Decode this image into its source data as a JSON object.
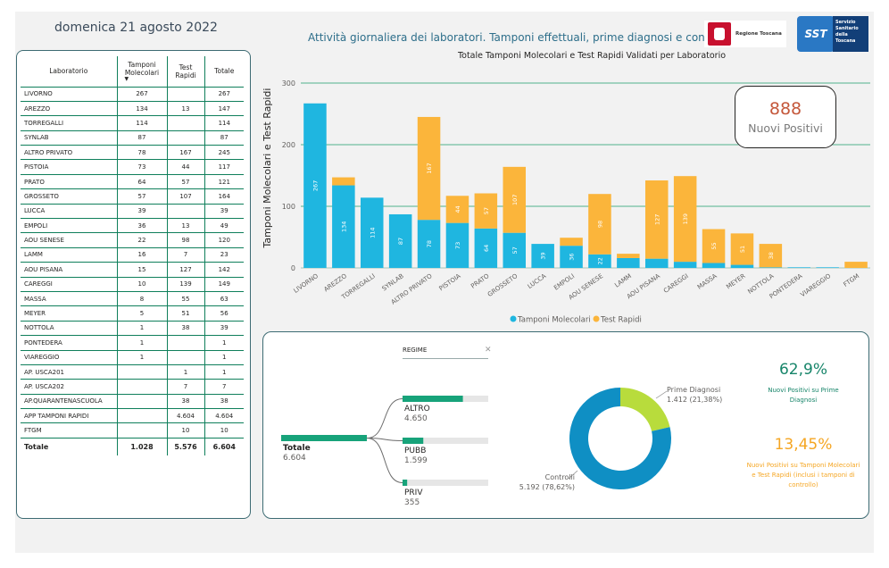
{
  "header": {
    "date": "domenica 21 agosto 2022",
    "subtitle": "Attività giornaliera dei laboratori. Tamponi effettuali, prime diagnosi e controlli",
    "logo_regione": "Regione Toscana",
    "logo_sst": "SST",
    "logo_sst_text": "Servizio Sanitario della Toscana"
  },
  "table": {
    "columns": [
      "Laboratorio",
      "Tamponi Molecolari",
      "Test Rapidi",
      "Totale"
    ],
    "rows": [
      [
        "LIVORNO",
        "267",
        "",
        "267"
      ],
      [
        "AREZZO",
        "134",
        "13",
        "147"
      ],
      [
        "TORREGALLI",
        "114",
        "",
        "114"
      ],
      [
        "SYNLAB",
        "87",
        "",
        "87"
      ],
      [
        "ALTRO PRIVATO",
        "78",
        "167",
        "245"
      ],
      [
        "PISTOIA",
        "73",
        "44",
        "117"
      ],
      [
        "PRATO",
        "64",
        "57",
        "121"
      ],
      [
        "GROSSETO",
        "57",
        "107",
        "164"
      ],
      [
        "LUCCA",
        "39",
        "",
        "39"
      ],
      [
        "EMPOLI",
        "36",
        "13",
        "49"
      ],
      [
        "AOU SENESE",
        "22",
        "98",
        "120"
      ],
      [
        "LAMM",
        "16",
        "7",
        "23"
      ],
      [
        "AOU PISANA",
        "15",
        "127",
        "142"
      ],
      [
        "CAREGGI",
        "10",
        "139",
        "149"
      ],
      [
        "MASSA",
        "8",
        "55",
        "63"
      ],
      [
        "MEYER",
        "5",
        "51",
        "56"
      ],
      [
        "NOTTOLA",
        "1",
        "38",
        "39"
      ],
      [
        "PONTEDERA",
        "1",
        "",
        "1"
      ],
      [
        "VIAREGGIO",
        "1",
        "",
        "1"
      ],
      [
        "AP. USCA201",
        "",
        "1",
        "1"
      ],
      [
        "AP. USCA202",
        "",
        "7",
        "7"
      ],
      [
        "AP.QUARANTENASCUOLA",
        "",
        "38",
        "38"
      ],
      [
        "APP TAMPONI RAPIDI",
        "",
        "4.604",
        "4.604"
      ],
      [
        "FTGM",
        "",
        "10",
        "10"
      ]
    ],
    "total": [
      "Totale",
      "1.028",
      "5.576",
      "6.604"
    ]
  },
  "chart_data": {
    "type": "bar",
    "stacked": true,
    "title": "Totale Tamponi Molecolari e Test Rapidi Validati per Laboratorio",
    "ylabel": "Tamponi Molecolari e Test Rapidi",
    "xlabel": "",
    "ylim": [
      0,
      300
    ],
    "yticks": [
      0,
      100,
      200,
      300
    ],
    "grid": true,
    "legend": "bottom",
    "categories": [
      "LIVORNO",
      "AREZZO",
      "TORREGALLI",
      "SYNLAB",
      "ALTRO PRIVATO",
      "PISTOIA",
      "PRATO",
      "GROSSETO",
      "LUCCA",
      "EMPOLI",
      "AOU SENESE",
      "LAMM",
      "AOU PISANA",
      "CAREGGI",
      "MASSA",
      "MEYER",
      "NOTTOLA",
      "PONTEDERA",
      "VIAREGGIO",
      "FTGM"
    ],
    "series": [
      {
        "name": "Tamponi Molecolari",
        "color": "#1fb6e0",
        "values": [
          267,
          134,
          114,
          87,
          78,
          73,
          64,
          57,
          39,
          36,
          22,
          16,
          15,
          10,
          8,
          5,
          1,
          1,
          1,
          0
        ]
      },
      {
        "name": "Test Rapidi",
        "color": "#fbb53b",
        "values": [
          0,
          13,
          0,
          0,
          167,
          44,
          57,
          107,
          0,
          13,
          98,
          7,
          127,
          139,
          55,
          51,
          38,
          0,
          0,
          10
        ]
      }
    ]
  },
  "kpi_main": {
    "value": "888",
    "label": "Nuovi Positivi"
  },
  "tree": {
    "filter_label": "REGIME",
    "root": {
      "label": "Totale",
      "value": "6.604",
      "amount": 6604
    },
    "children": [
      {
        "label": "ALTRO",
        "value": "4.650",
        "amount": 4650
      },
      {
        "label": "PUBB",
        "value": "1.599",
        "amount": 1599
      },
      {
        "label": "PRIV",
        "value": "355",
        "amount": 355
      }
    ]
  },
  "donut": {
    "slices": [
      {
        "label": "Prime Diagnosi",
        "value_text": "1.412 (21,38%)",
        "value": 1412,
        "color": "#b8dc3c"
      },
      {
        "label": "Controlli",
        "value_text": "5.192 (78,62%)",
        "value": 5192,
        "color": "#0f8fc4"
      }
    ]
  },
  "kpi_side": [
    {
      "value": "62,9%",
      "label": "Nuovi Positivi su Prime Diagnosi"
    },
    {
      "value": "13,45%",
      "label": "Nuovi Positivi su Tamponi Molecolari e Test Rapidi (inclusi i tamponi di controllo)"
    }
  ]
}
